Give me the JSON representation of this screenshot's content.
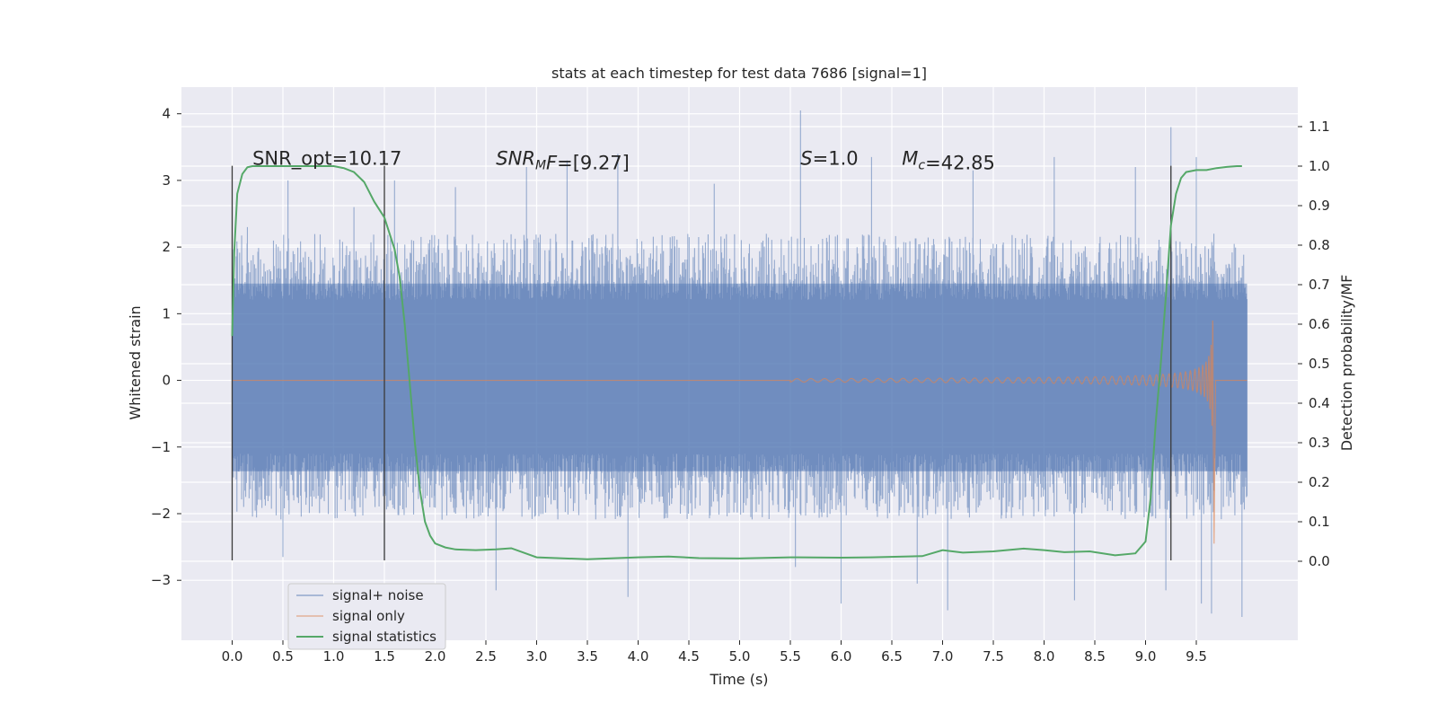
{
  "chart_data": {
    "type": "line",
    "title": "stats at each timestep for test data 7686 [signal=1]",
    "xlabel": "Time (s)",
    "ylabel": "Whitened strain",
    "y2label": "Detection probability/MF",
    "xlim": [
      -0.5,
      10.5
    ],
    "ylim": [
      -3.9,
      4.4
    ],
    "y2lim": [
      -0.2,
      1.2
    ],
    "x_ticks": [
      0.0,
      0.5,
      1.0,
      1.5,
      2.0,
      2.5,
      3.0,
      3.5,
      4.0,
      4.5,
      5.0,
      5.5,
      6.0,
      6.5,
      7.0,
      7.5,
      8.0,
      8.5,
      9.0,
      9.5
    ],
    "x_tick_labels": [
      "0.0",
      "0.5",
      "1.0",
      "1.5",
      "2.0",
      "2.5",
      "3.0",
      "3.5",
      "4.0",
      "4.5",
      "5.0",
      "5.5",
      "6.0",
      "6.5",
      "7.0",
      "7.5",
      "8.0",
      "8.5",
      "9.0",
      "9.5"
    ],
    "y_ticks": [
      -3,
      -2,
      -1,
      0,
      1,
      2,
      3,
      4
    ],
    "y_tick_labels": [
      "−3",
      "−2",
      "−1",
      "0",
      "1",
      "2",
      "3",
      "4"
    ],
    "y2_ticks": [
      0.0,
      0.1,
      0.2,
      0.3,
      0.4,
      0.5,
      0.6,
      0.7,
      0.8,
      0.9,
      1.0,
      1.1
    ],
    "y2_tick_labels": [
      "0.0",
      "0.1",
      "0.2",
      "0.3",
      "0.4",
      "0.5",
      "0.6",
      "0.7",
      "0.8",
      "0.9",
      "1.0",
      "1.1"
    ],
    "grid": true,
    "legend_placement": "lower-left",
    "colors": {
      "background": "#eaeaf2",
      "grid": "#ffffff",
      "noise": "#4c72b0",
      "signal": "#dd8452",
      "stats": "#55a868",
      "vline": "#3a3a3a"
    },
    "series": [
      {
        "name": "signal+ noise",
        "color": "#4c72b0",
        "x_range": [
          0.0,
          10.0
        ],
        "band_upper": 2.2,
        "band_lower": -2.2,
        "spike_max": 4.05,
        "spike_min": -3.55,
        "peaks": [
          [
            0.15,
            2.3
          ],
          [
            0.55,
            3.0
          ],
          [
            1.2,
            2.6
          ],
          [
            1.6,
            3.0
          ],
          [
            2.2,
            2.9
          ],
          [
            2.9,
            3.2
          ],
          [
            3.3,
            3.3
          ],
          [
            3.8,
            3.4
          ],
          [
            4.75,
            2.95
          ],
          [
            5.6,
            4.05
          ],
          [
            6.3,
            3.35
          ],
          [
            7.3,
            3.15
          ],
          [
            8.1,
            3.35
          ],
          [
            8.9,
            3.2
          ],
          [
            9.25,
            3.8
          ],
          [
            9.5,
            3.35
          ]
        ],
        "troughs": [
          [
            0.5,
            -2.65
          ],
          [
            1.5,
            -2.7
          ],
          [
            2.6,
            -3.15
          ],
          [
            3.9,
            -3.25
          ],
          [
            5.55,
            -2.8
          ],
          [
            6.0,
            -3.35
          ],
          [
            6.75,
            -3.05
          ],
          [
            7.05,
            -3.45
          ],
          [
            8.3,
            -3.3
          ],
          [
            9.2,
            -3.15
          ],
          [
            9.55,
            -3.35
          ],
          [
            9.65,
            -3.5
          ],
          [
            9.95,
            -3.55
          ]
        ]
      },
      {
        "name": "signal only",
        "color": "#dd8452",
        "chirp_start": 5.5,
        "merger_time": 9.67,
        "peak_amplitude": 2.45,
        "end_time": 10.0
      },
      {
        "name": "signal statistics",
        "color": "#55a868",
        "axis": "right",
        "x": [
          0.0,
          0.02,
          0.05,
          0.1,
          0.15,
          0.2,
          0.3,
          0.5,
          0.8,
          1.0,
          1.1,
          1.2,
          1.3,
          1.4,
          1.5,
          1.6,
          1.65,
          1.7,
          1.75,
          1.8,
          1.85,
          1.9,
          1.95,
          2.0,
          2.1,
          2.2,
          2.4,
          2.6,
          2.75,
          3.0,
          3.5,
          4.0,
          4.3,
          4.6,
          5.0,
          5.5,
          6.0,
          6.3,
          6.8,
          7.0,
          7.2,
          7.5,
          7.8,
          8.0,
          8.2,
          8.45,
          8.7,
          8.9,
          9.0,
          9.05,
          9.1,
          9.15,
          9.2,
          9.25,
          9.3,
          9.35,
          9.4,
          9.5,
          9.6,
          9.7,
          9.8,
          9.9,
          9.95
        ],
        "y": [
          0.57,
          0.78,
          0.93,
          0.98,
          0.997,
          1.0,
          1.0,
          1.0,
          1.0,
          1.0,
          0.995,
          0.985,
          0.96,
          0.91,
          0.87,
          0.79,
          0.72,
          0.6,
          0.45,
          0.3,
          0.18,
          0.1,
          0.065,
          0.045,
          0.035,
          0.03,
          0.028,
          0.03,
          0.033,
          0.01,
          0.005,
          0.01,
          0.012,
          0.008,
          0.007,
          0.01,
          0.009,
          0.01,
          0.013,
          0.028,
          0.022,
          0.025,
          0.032,
          0.028,
          0.023,
          0.025,
          0.015,
          0.02,
          0.05,
          0.16,
          0.35,
          0.5,
          0.67,
          0.85,
          0.93,
          0.97,
          0.985,
          0.99,
          0.99,
          0.995,
          0.998,
          1.0,
          1.0
        ]
      }
    ],
    "vertical_lines": [
      {
        "x": 0.0,
        "ymin": -2.7,
        "ymax": 3.22
      },
      {
        "x": 1.5,
        "ymin": -2.7,
        "ymax": 3.22
      },
      {
        "x": 9.25,
        "ymin": -2.7,
        "ymax": 3.22
      }
    ],
    "annotations": [
      {
        "id": "snr-opt",
        "x": 0.2,
        "y": 3.22,
        "parts": [
          {
            "t": "SNR_opt=10.17"
          }
        ]
      },
      {
        "id": "snr-mf",
        "x": 2.6,
        "y": 3.22,
        "parts": [
          {
            "t": "SNR",
            "i": true
          },
          {
            "t": "M",
            "i": true,
            "sub": true
          },
          {
            "t": "F",
            "i": true
          },
          {
            "t": "=[9.27]"
          }
        ]
      },
      {
        "id": "s-value",
        "x": 5.6,
        "y": 3.22,
        "parts": [
          {
            "t": "S",
            "i": true
          },
          {
            "t": "=1.0"
          }
        ]
      },
      {
        "id": "mc-value",
        "x": 6.6,
        "y": 3.22,
        "parts": [
          {
            "t": "M",
            "i": true
          },
          {
            "t": "c",
            "i": true,
            "sub": true
          },
          {
            "t": "=42.85"
          }
        ]
      }
    ]
  }
}
